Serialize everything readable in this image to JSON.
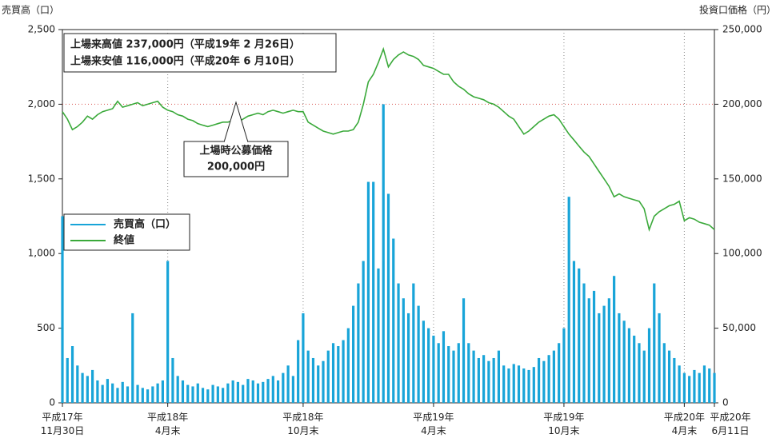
{
  "chart_data": {
    "type": "bar_line",
    "y_label": "売買高（口）",
    "y2_label": "投資口価格（円）",
    "annotations": [
      "上場来高値 237,000円（平成19年 2 月26日）",
      "上場来安値 116,000円（平成20年 6 月10日）"
    ],
    "callout": {
      "lines": [
        "上場時公募価格",
        "200,000円"
      ],
      "value": 200000
    },
    "ylim": [
      0,
      2500
    ],
    "yticks": [
      0,
      500,
      {
        "value": 1000,
        "label": "1,000"
      },
      {
        "value": 1500,
        "label": "1,500"
      },
      {
        "value": 2000,
        "label": "2,000"
      },
      {
        "value": 2500,
        "label": "2,500"
      }
    ],
    "y2lim": [
      0,
      250000
    ],
    "y2ticks": [
      0,
      {
        "value": 50000,
        "label": "50,000"
      },
      {
        "value": 100000,
        "label": "100,000"
      },
      {
        "value": 150000,
        "label": "150,000"
      },
      {
        "value": 200000,
        "label": "200,000"
      },
      {
        "value": 250000,
        "label": "250,000"
      }
    ],
    "legend": "left",
    "categories": [
      "平成17年\n11月30日",
      null,
      null,
      null,
      null,
      null,
      null,
      null,
      null,
      null,
      null,
      null,
      null,
      null,
      null,
      null,
      null,
      null,
      null,
      null,
      null,
      "平成18年\n4月末",
      null,
      null,
      null,
      null,
      null,
      null,
      null,
      null,
      null,
      null,
      null,
      null,
      null,
      null,
      null,
      null,
      null,
      null,
      null,
      null,
      null,
      null,
      null,
      null,
      null,
      null,
      "平成18年\n10月末",
      null,
      null,
      null,
      null,
      null,
      null,
      null,
      null,
      null,
      null,
      null,
      null,
      null,
      null,
      null,
      null,
      null,
      null,
      null,
      null,
      null,
      null,
      null,
      null,
      null,
      "平成19年\n4月末",
      null,
      null,
      null,
      null,
      null,
      null,
      null,
      null,
      null,
      null,
      null,
      null,
      null,
      null,
      null,
      null,
      null,
      null,
      null,
      null,
      null,
      null,
      null,
      null,
      null,
      "平成19年\n10月末",
      null,
      null,
      null,
      null,
      null,
      null,
      null,
      null,
      null,
      null,
      null,
      null,
      null,
      null,
      null,
      null,
      null,
      null,
      null,
      null,
      null,
      null,
      null,
      "平成20年\n4月末",
      null,
      null,
      null,
      null,
      null,
      "平成20年\n6月11日"
    ],
    "series": [
      {
        "name": "売買高（口）",
        "color": "#18a4d8",
        "values": [
          1250,
          300,
          380,
          250,
          200,
          180,
          220,
          150,
          120,
          160,
          130,
          100,
          140,
          110,
          600,
          120,
          100,
          90,
          110,
          130,
          150,
          950,
          300,
          180,
          150,
          120,
          110,
          130,
          100,
          90,
          120,
          110,
          100,
          130,
          150,
          140,
          120,
          160,
          150,
          130,
          140,
          160,
          180,
          150,
          200,
          250,
          180,
          420,
          600,
          350,
          300,
          250,
          280,
          350,
          400,
          380,
          420,
          500,
          650,
          800,
          950,
          1480,
          1480,
          900,
          2000,
          1400,
          1100,
          800,
          700,
          600,
          800,
          650,
          550,
          500,
          450,
          400,
          480,
          380,
          350,
          400,
          700,
          400,
          350,
          300,
          320,
          280,
          300,
          350,
          250,
          230,
          260,
          250,
          230,
          220,
          240,
          300,
          280,
          320,
          350,
          400,
          500,
          1380,
          950,
          900,
          800,
          700,
          750,
          600,
          650,
          700,
          850,
          600,
          550,
          500,
          450,
          400,
          350,
          500,
          800,
          600,
          400,
          350,
          300,
          250,
          200,
          180,
          220,
          200,
          250,
          230,
          200
        ]
      },
      {
        "name": "終値",
        "color": "#3aa93a",
        "axis": "y2",
        "values": [
          195000,
          190000,
          183000,
          185000,
          188000,
          192000,
          190000,
          193000,
          195000,
          196000,
          197000,
          202000,
          198000,
          199000,
          200000,
          201000,
          199000,
          200000,
          201000,
          202000,
          198000,
          196000,
          195000,
          193000,
          192000,
          190000,
          189000,
          187000,
          186000,
          185000,
          186000,
          187000,
          188000,
          188000,
          189000,
          188000,
          190000,
          192000,
          193000,
          194000,
          193000,
          195000,
          196000,
          195000,
          194000,
          195000,
          196000,
          195000,
          195000,
          188000,
          186000,
          184000,
          182000,
          181000,
          180000,
          181000,
          182000,
          182000,
          183000,
          188000,
          200000,
          215000,
          220000,
          228000,
          237000,
          225000,
          230000,
          233000,
          235000,
          233000,
          232000,
          230000,
          226000,
          225000,
          224000,
          222000,
          220000,
          220000,
          215000,
          212000,
          210000,
          207000,
          205000,
          204000,
          203000,
          201000,
          200000,
          198000,
          195000,
          192000,
          190000,
          185000,
          180000,
          182000,
          185000,
          188000,
          190000,
          192000,
          193000,
          190000,
          185000,
          180000,
          176000,
          172000,
          168000,
          165000,
          160000,
          155000,
          150000,
          145000,
          138000,
          140000,
          138000,
          137000,
          136000,
          135000,
          130000,
          116000,
          125000,
          128000,
          130000,
          132000,
          133000,
          135000,
          122000,
          124000,
          123000,
          121000,
          120000,
          119000,
          116000
        ]
      }
    ]
  }
}
